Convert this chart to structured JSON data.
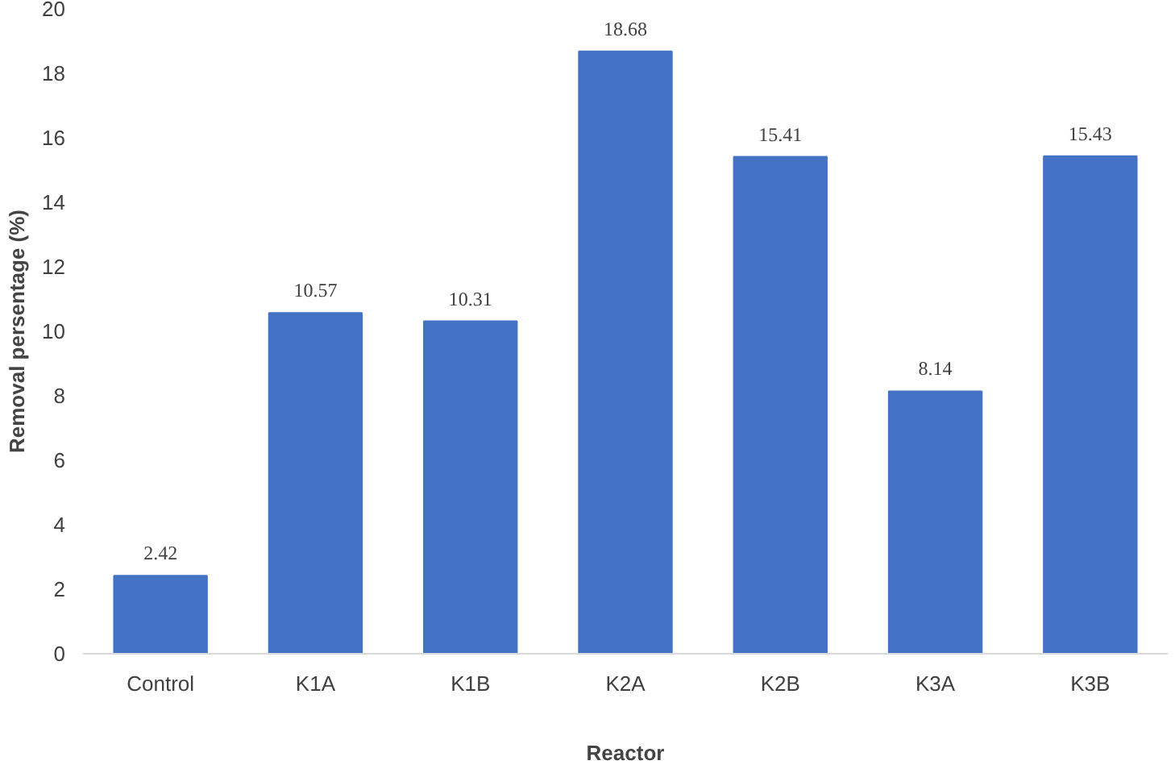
{
  "chart_data": {
    "type": "bar",
    "xlabel": "Reactor",
    "ylabel": "Removal persentage (%)",
    "categories": [
      "Control",
      "K1A",
      "K1B",
      "K2A",
      "K2B",
      "K3A",
      "K3B"
    ],
    "values": [
      2.42,
      10.57,
      10.31,
      18.68,
      15.41,
      8.14,
      15.43
    ],
    "color": "#4472c4",
    "ylim": [
      0,
      20
    ],
    "yticks": [
      0,
      2,
      4,
      6,
      8,
      10,
      12,
      14,
      16,
      18,
      20
    ],
    "grid": false,
    "data_labels": true
  }
}
